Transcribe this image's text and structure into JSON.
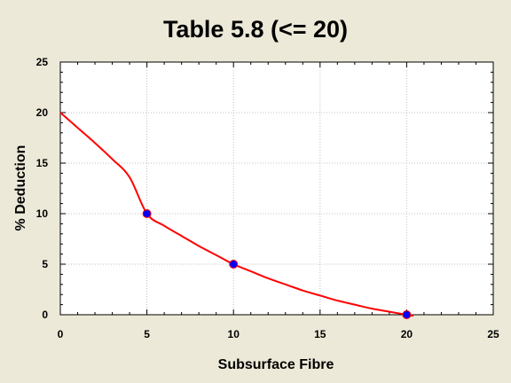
{
  "chart_data": {
    "type": "scatter",
    "title": "Table 5.8 (<= 20)",
    "xlabel": "Subsurface Fibre",
    "ylabel": "% Deduction",
    "xlim": [
      0,
      25
    ],
    "ylim": [
      0,
      25
    ],
    "x_ticks": [
      0,
      5,
      10,
      15,
      20,
      25
    ],
    "y_ticks": [
      0,
      5,
      10,
      15,
      20,
      25
    ],
    "x_tick_labels": [
      "0",
      "5",
      "10",
      "15",
      "20",
      "25"
    ],
    "y_tick_labels": [
      "0",
      "5",
      "10",
      "15",
      "20",
      "25"
    ],
    "grid": true,
    "series": [
      {
        "kind": "points",
        "color": "#0000FF",
        "x": [
          5,
          10,
          20
        ],
        "y": [
          10,
          5,
          0
        ]
      },
      {
        "kind": "curve",
        "color": "#FF0000",
        "x": [
          0,
          1,
          2,
          3,
          4,
          5,
          6,
          7,
          8,
          9,
          10,
          11,
          12,
          13,
          14,
          15,
          16,
          17,
          18,
          19,
          20,
          20.4
        ],
        "y": [
          20,
          18.5,
          17.0,
          15.4,
          13.6,
          10,
          8.8,
          7.8,
          6.8,
          5.9,
          5,
          4.3,
          3.6,
          3.0,
          2.4,
          1.9,
          1.4,
          1.0,
          0.6,
          0.3,
          0,
          -0.1
        ]
      }
    ]
  },
  "colors": {
    "background": "#ECE9D8",
    "plot_area": "#FFFFFF",
    "grid": "#C0C0C0",
    "curve": "#FF0000",
    "points": "#0000FF"
  }
}
